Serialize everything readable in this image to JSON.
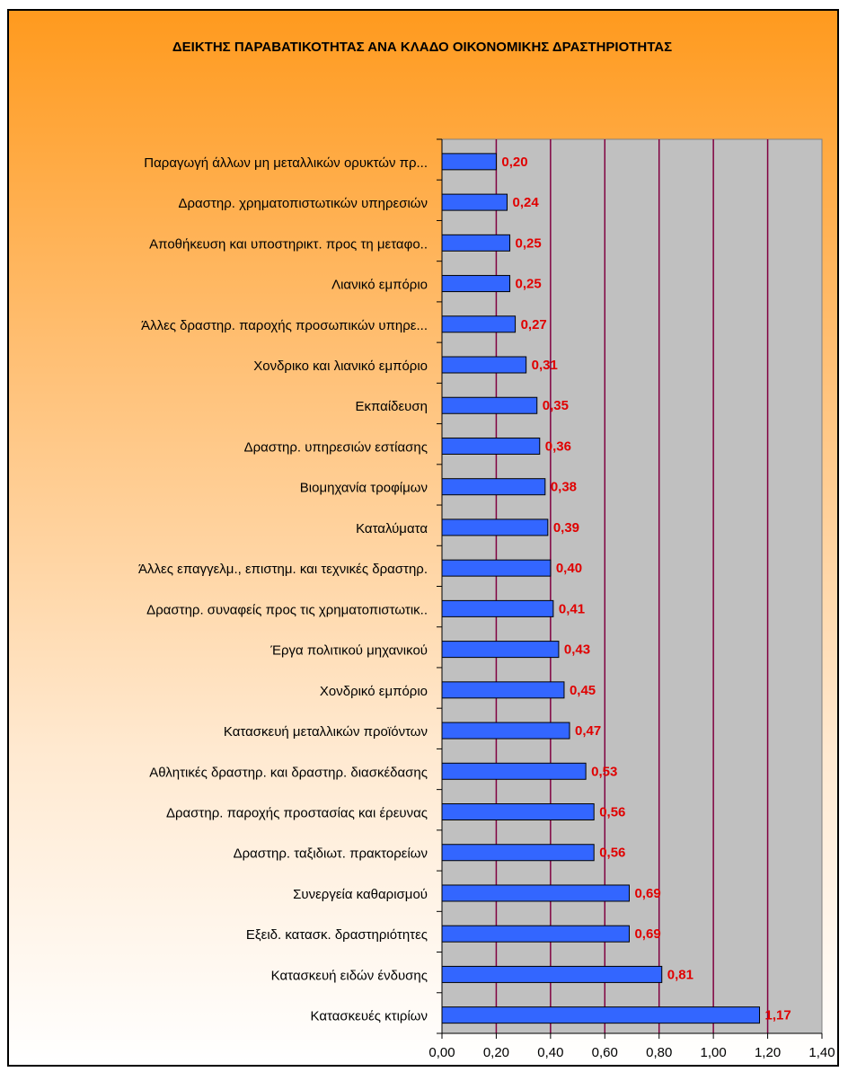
{
  "chart_data": {
    "type": "hbar",
    "title": "ΔΕΙΚΤΗΣ ΠΑΡΑΒΑΤΙΚΟΤΗΤΑΣ ΑΝΑ ΚΛΑΔΟ ΟΙΚΟΝΟΜΙΚΗΣ ΔΡΑΣΤΗΡΙΟΤΗΤΑΣ",
    "categories": [
      "Παραγωγή άλλων μη μεταλλικών ορυκτών πρ...",
      "Δραστηρ. χρηματοπιστωτικών υπηρεσιών",
      "Αποθήκευση και υποστηρικτ. προς τη μεταφο..",
      "Λιανικό εμπόριο",
      "Άλλες δραστηρ. παροχής προσωπικών υπηρε...",
      "Χονδρικο και λιανικό εμπόριο",
      "Εκπαίδευση",
      "Δραστηρ. υπηρεσιών εστίασης",
      "Βιομηχανία τροφίμων",
      "Καταλύματα",
      "Άλλες επαγγελμ., επιστημ. και τεχνικές δραστηρ.",
      "Δραστηρ. συναφείς προς τις χρηματοπιστωτικ..",
      "Έργα πολιτικού μηχανικού",
      "Χονδρικό εμπόριο",
      "Κατασκευή μεταλλικών προϊόντων",
      "Αθλητικές δραστηρ. και δραστηρ. διασκέδασης",
      "Δραστηρ. παροχής προστασίας και έρευνας",
      "Δραστηρ. ταξιδιωτ. πρακτορείων",
      "Συνεργεία καθαρισμού",
      "Εξειδ. κατασκ. δραστηριότητες",
      "Κατασκευή ειδών ένδυσης",
      "Κατασκευές κτιρίων"
    ],
    "values": [
      0.2,
      0.24,
      0.25,
      0.25,
      0.27,
      0.31,
      0.35,
      0.36,
      0.38,
      0.39,
      0.4,
      0.41,
      0.43,
      0.45,
      0.47,
      0.53,
      0.56,
      0.56,
      0.69,
      0.69,
      0.81,
      1.17
    ],
    "value_labels": [
      "0,20",
      "0,24",
      "0,25",
      "0,25",
      "0,27",
      "0,31",
      "0,35",
      "0,36",
      "0,38",
      "0,39",
      "0,40",
      "0,41",
      "0,43",
      "0,45",
      "0,47",
      "0,53",
      "0,56",
      "0,56",
      "0,69",
      "0,69",
      "0,81",
      "1,17"
    ],
    "color": "#3366ff",
    "xlim": [
      0,
      1.4
    ],
    "xticks": [
      {
        "value": 0,
        "label": "0,00"
      },
      {
        "value": 0.2,
        "label": "0,20"
      },
      {
        "value": 0.4,
        "label": "0,40"
      },
      {
        "value": 0.6,
        "label": "0,60"
      },
      {
        "value": 0.8,
        "label": "0,80"
      },
      {
        "value": 1.0,
        "label": "1,00"
      },
      {
        "value": 1.2,
        "label": "1,20"
      },
      {
        "value": 1.4,
        "label": "1,40"
      }
    ],
    "grid": true
  }
}
